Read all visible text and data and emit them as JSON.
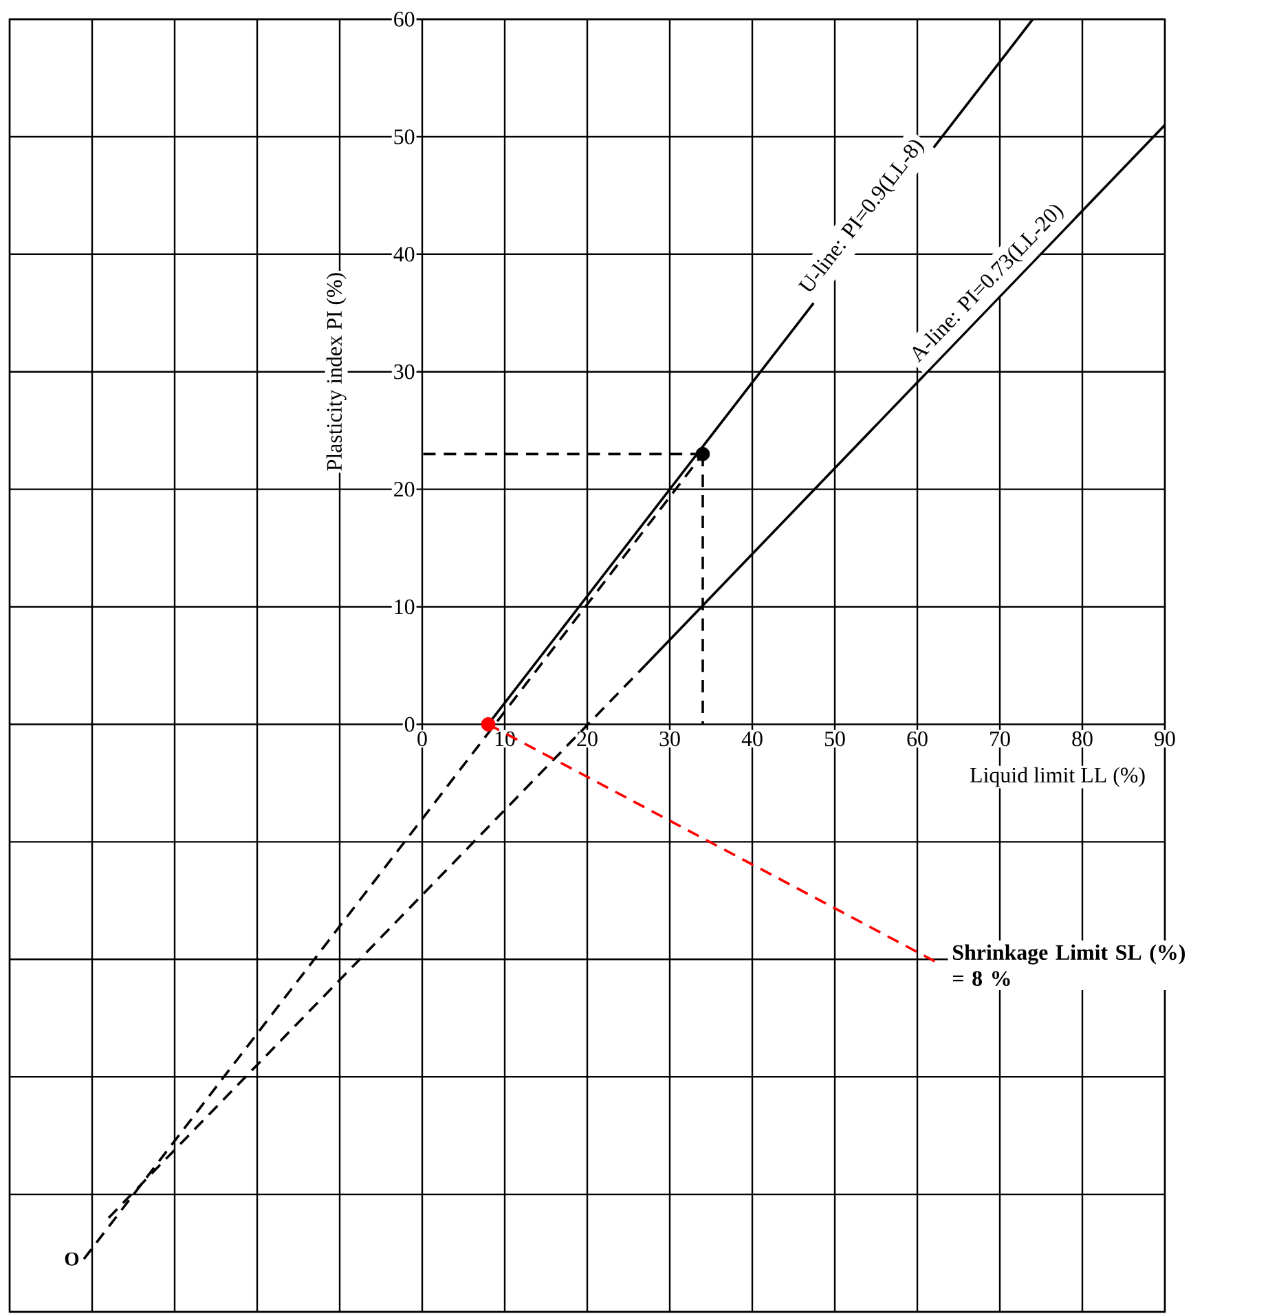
{
  "chart_data": {
    "type": "line",
    "xlabel": "Liquid limit LL (%)",
    "ylabel": "Plasticity index PI (%)",
    "xlim": [
      -50,
      90
    ],
    "ylim": [
      -50,
      60
    ],
    "xticks": [
      {
        "value": -50,
        "label": null
      },
      {
        "value": -40,
        "label": null
      },
      {
        "value": -30,
        "label": null
      },
      {
        "value": -20,
        "label": null
      },
      {
        "value": -10,
        "label": null
      },
      0,
      10,
      20,
      30,
      40,
      50,
      60,
      70,
      80,
      90
    ],
    "yticks": [
      {
        "value": -50,
        "label": null
      },
      {
        "value": -40,
        "label": null
      },
      {
        "value": -30,
        "label": null
      },
      {
        "value": -20,
        "label": null
      },
      {
        "value": -10,
        "label": null
      },
      0,
      10,
      20,
      30,
      40,
      50,
      60
    ],
    "grid": true,
    "series": [
      {
        "color": "#000000",
        "line_style": "solid",
        "x": [
          8,
          74
        ],
        "values": [
          0,
          60
        ]
      },
      {
        "color": "#000000",
        "line_style": "solid",
        "x": [
          27,
          90
        ],
        "values": [
          5,
          51
        ]
      },
      {
        "color": "#000000",
        "line_style": "dashed",
        "x": [
          -38,
          27
        ],
        "values": [
          -42,
          5
        ]
      },
      {
        "color": "#000000",
        "line_style": "dashed",
        "x": [
          -41,
          34
        ],
        "values": [
          -45.5,
          23
        ]
      },
      {
        "color": "#000000",
        "line_style": "dashed",
        "x": [
          34,
          0
        ],
        "values": [
          23,
          23
        ]
      },
      {
        "color": "#000000",
        "line_style": "dashed",
        "x": [
          34,
          34
        ],
        "values": [
          23,
          0
        ]
      },
      {
        "color": "#ff0000",
        "line_style": "dashed",
        "x": [
          8,
          63
        ],
        "values": [
          0,
          -20.5
        ]
      },
      {
        "type": "scatter",
        "color": "#000000",
        "marker": "circle",
        "x": [
          34
        ],
        "values": [
          23
        ]
      },
      {
        "type": "scatter",
        "color": "#ff0000",
        "marker": "circle",
        "x": [
          8
        ],
        "values": [
          0
        ]
      }
    ],
    "annotations": [
      {
        "text": "U-line: PI=0.9(LL-8)",
        "x": 55,
        "y": 42.3
      },
      {
        "text": "A-line: PI=0.73(LL-20)",
        "x": 70,
        "y": 36.5
      },
      {
        "text": "Shrinkage Limit SL (%) = 8 %",
        "x": 63,
        "y": -20.5
      },
      {
        "text": "O",
        "x": -41,
        "y": -45.5
      }
    ]
  }
}
